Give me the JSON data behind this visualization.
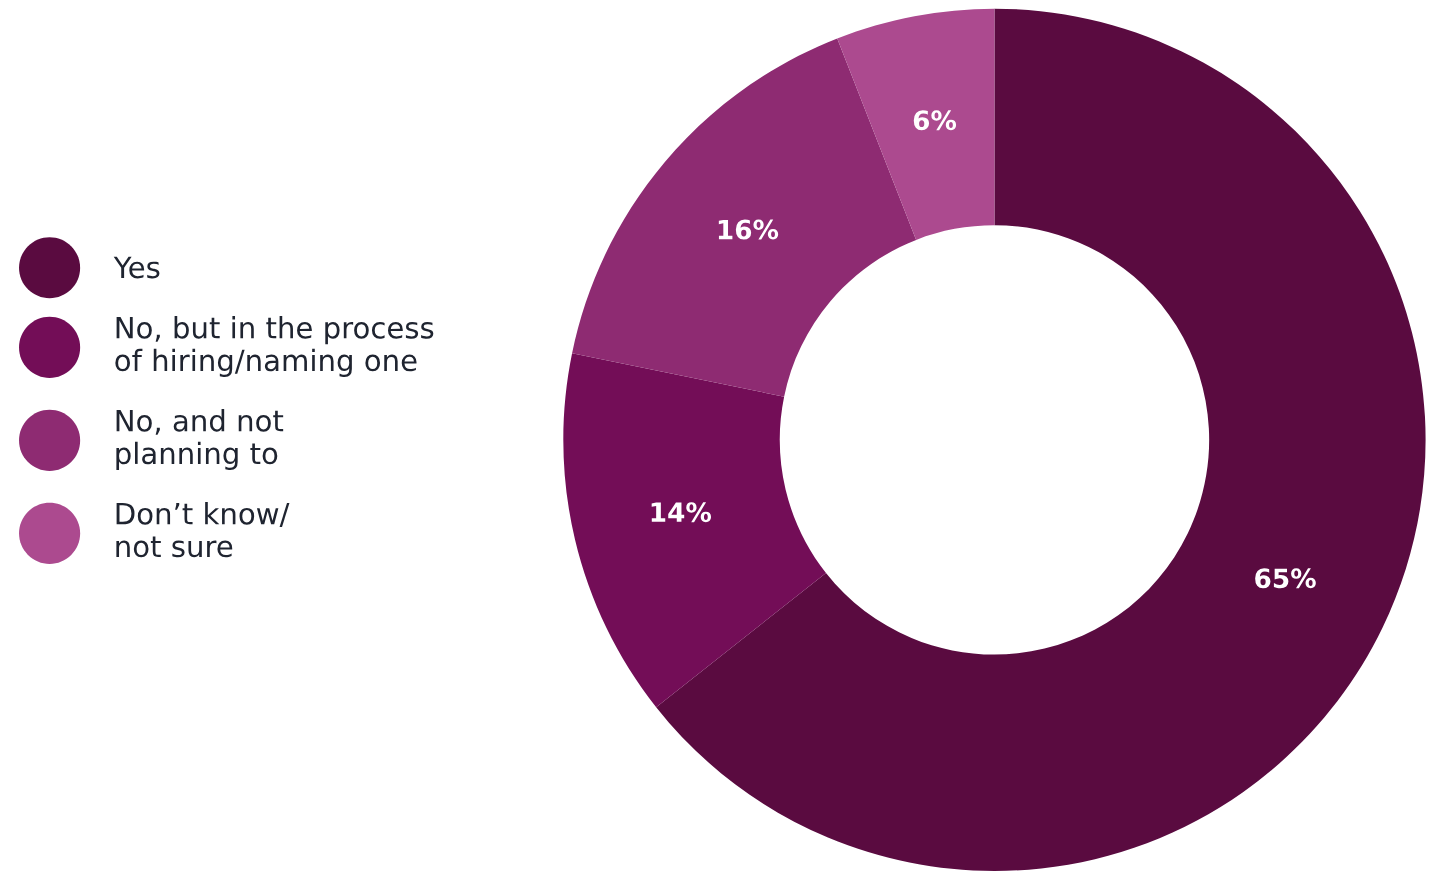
{
  "chart_data": {
    "type": "donut",
    "categories": [
      "Yes",
      "No, but in the process\nof hiring/naming one",
      "No, and not\nplanning to",
      "Don’t know/\nnot sure"
    ],
    "values": [
      65,
      14,
      16,
      6
    ],
    "value_labels": [
      "65%",
      "14%",
      "16%",
      "6%"
    ],
    "colors": [
      "#5a0b40",
      "#730d57",
      "#8e2b72",
      "#ac4a8f"
    ],
    "legend": "left"
  }
}
